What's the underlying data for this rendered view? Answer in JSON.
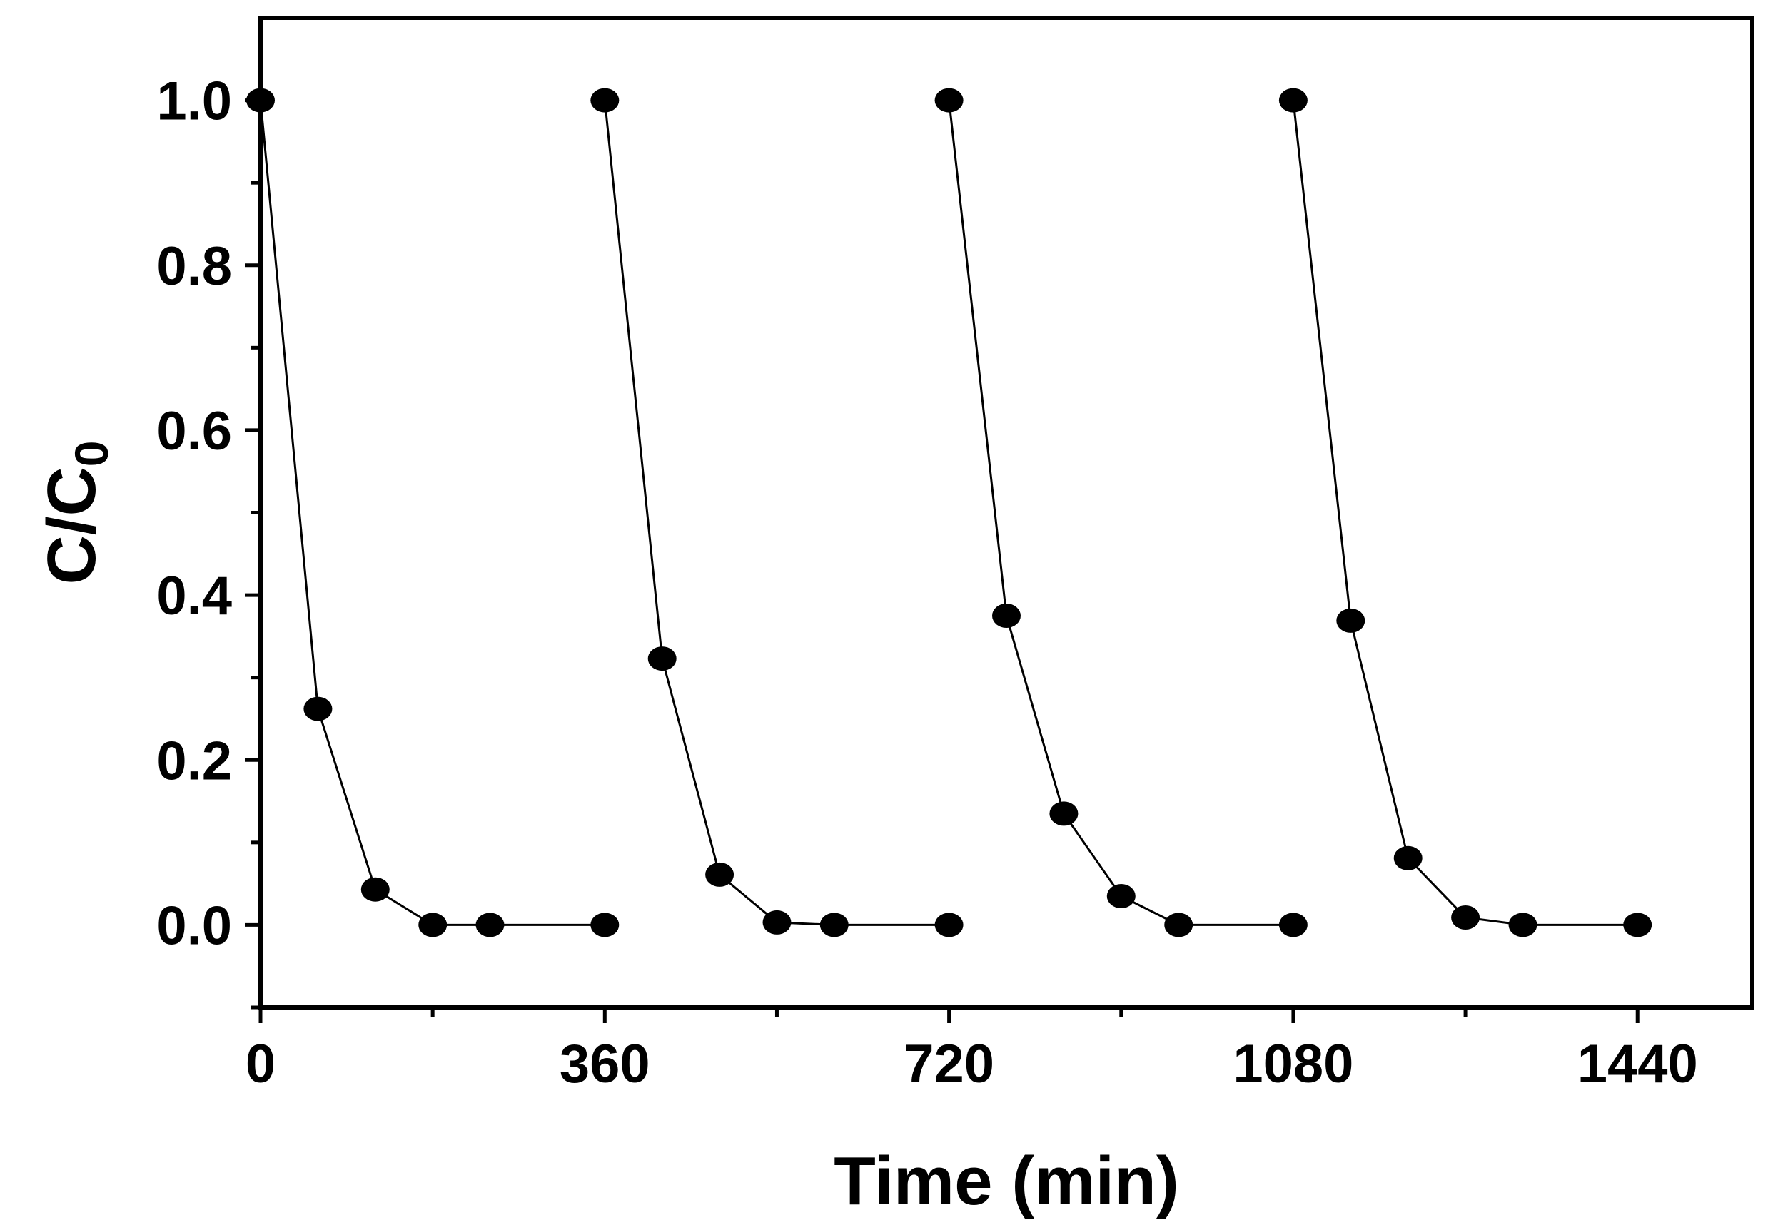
{
  "chart_data": {
    "type": "line",
    "title": "",
    "xlabel": "Time (min)",
    "ylabel": {
      "main": "C/C",
      "subscript": "0"
    },
    "xlim": [
      0,
      1560
    ],
    "ylim": [
      -0.1,
      1.1
    ],
    "x_ticks": [
      {
        "value": 0,
        "label": "0"
      },
      {
        "value": 360,
        "label": "360"
      },
      {
        "value": 720,
        "label": "720"
      },
      {
        "value": 1080,
        "label": "1080"
      },
      {
        "value": 1440,
        "label": "1440"
      }
    ],
    "x_minor_ticks": [
      180,
      540,
      900,
      1260
    ],
    "y_ticks": [
      {
        "value": 0.0,
        "label": "0.0"
      },
      {
        "value": 0.2,
        "label": "0.2"
      },
      {
        "value": 0.4,
        "label": "0.4"
      },
      {
        "value": 0.6,
        "label": "0.6"
      },
      {
        "value": 0.8,
        "label": "0.8"
      },
      {
        "value": 1.0,
        "label": "1.0"
      }
    ],
    "y_minor_ticks": [
      -0.1,
      0.1,
      0.3,
      0.5,
      0.7,
      0.9
    ],
    "grid": false,
    "legend": "none",
    "color": "#000000",
    "series": [
      {
        "x": [
          0,
          60,
          120,
          180,
          240,
          360
        ],
        "y": [
          1.0,
          0.262,
          0.043,
          0.0,
          0.0,
          0.0
        ]
      },
      {
        "x": [
          360,
          420,
          480,
          540,
          600,
          720
        ],
        "y": [
          1.0,
          0.323,
          0.061,
          0.003,
          0.0,
          0.0
        ]
      },
      {
        "x": [
          720,
          780,
          840,
          900,
          960,
          1080
        ],
        "y": [
          1.0,
          0.375,
          0.135,
          0.035,
          0.0,
          0.0
        ]
      },
      {
        "x": [
          1080,
          1140,
          1200,
          1260,
          1320,
          1440
        ],
        "y": [
          1.0,
          0.369,
          0.081,
          0.009,
          0.0,
          0.0
        ]
      }
    ]
  }
}
